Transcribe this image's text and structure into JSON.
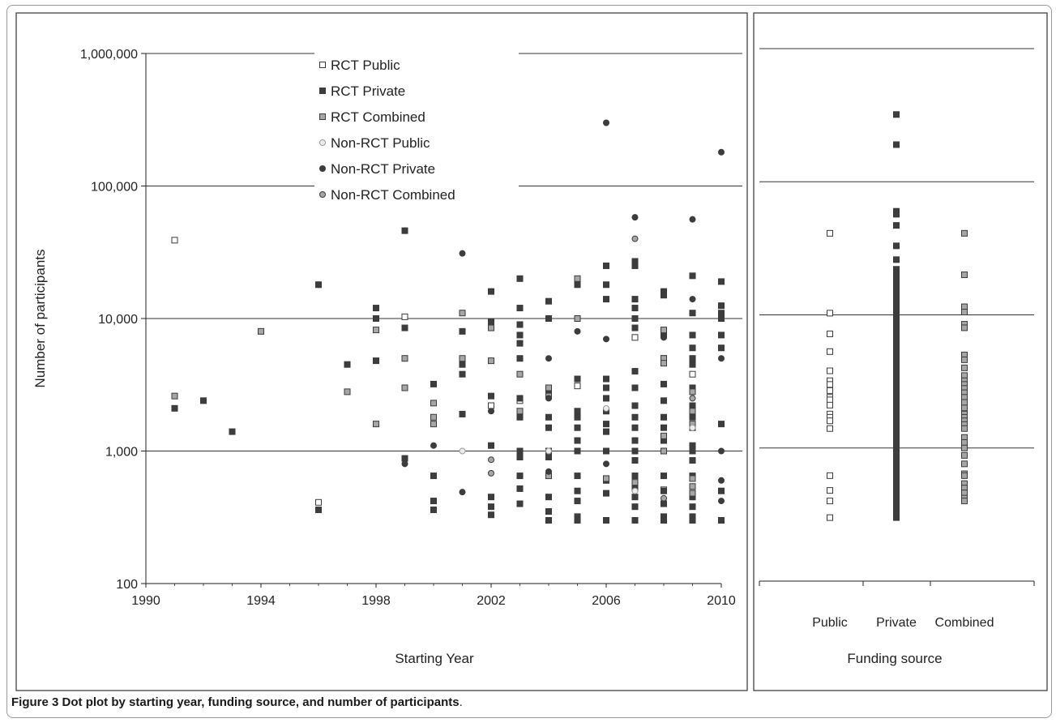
{
  "caption": {
    "label": "Figure 3",
    "text": "Dot plot by starting year, funding source, and number of participants",
    "end": "."
  },
  "colors": {
    "rct_public": "#ffffff",
    "rct_private": "#3d3d3d",
    "rct_combined": "#a6a6a6",
    "nonrct_public": "#ececec",
    "nonrct_private": "#3d3d3d",
    "nonrct_combined": "#a6a6a6",
    "gridline": "#333333",
    "panel_border": "#333333"
  },
  "chart_data": [
    {
      "type": "scatter",
      "title": "",
      "xlabel": "Starting Year",
      "ylabel": "Number of participants",
      "xlim": [
        1990,
        2010
      ],
      "ylim": [
        100,
        1000000
      ],
      "yscale": "log",
      "grid": "horizontal",
      "legend_position": "top-center",
      "x_tick_labels": [
        "1990",
        "1994",
        "1998",
        "2002",
        "2006",
        "2010"
      ],
      "x_ticks": [
        1990,
        1994,
        1998,
        2002,
        2006,
        2010
      ],
      "y_tick_labels": [
        "100",
        "1,000",
        "10,000",
        "100,000",
        "1,000,000"
      ],
      "y_ticks": [
        100,
        1000,
        10000,
        100000,
        1000000
      ],
      "series": [
        {
          "name": "RCT Public",
          "marker": "square",
          "color": "#ffffff",
          "points": [
            [
              1991,
              39000
            ],
            [
              1996,
              410
            ],
            [
              1999,
              10300
            ],
            [
              2002,
              2200
            ],
            [
              2003,
              2400
            ],
            [
              2005,
              3100
            ],
            [
              2007,
              7200
            ],
            [
              2008,
              510
            ],
            [
              2009,
              3800
            ],
            [
              2007,
              620
            ]
          ]
        },
        {
          "name": "RCT Private",
          "marker": "square",
          "color": "#3d3d3d",
          "points": [
            [
              1991,
              2100
            ],
            [
              1992,
              2400
            ],
            [
              1993,
              1400
            ],
            [
              1996,
              18000
            ],
            [
              1996,
              360
            ],
            [
              1997,
              4500
            ],
            [
              1998,
              12000
            ],
            [
              1998,
              10000
            ],
            [
              1998,
              4800
            ],
            [
              1999,
              46000
            ],
            [
              1999,
              8500
            ],
            [
              1999,
              880
            ],
            [
              2000,
              3200
            ],
            [
              2000,
              650
            ],
            [
              2000,
              420
            ],
            [
              2000,
              360
            ],
            [
              2001,
              8000
            ],
            [
              2001,
              4500
            ],
            [
              2001,
              3800
            ],
            [
              2001,
              1900
            ],
            [
              2002,
              16000
            ],
            [
              2002,
              9500
            ],
            [
              2002,
              2600
            ],
            [
              2002,
              1100
            ],
            [
              2002,
              450
            ],
            [
              2002,
              380
            ],
            [
              2002,
              330
            ],
            [
              2003,
              20000
            ],
            [
              2003,
              12000
            ],
            [
              2003,
              9000
            ],
            [
              2003,
              7500
            ],
            [
              2003,
              6500
            ],
            [
              2003,
              5000
            ],
            [
              2003,
              2500
            ],
            [
              2003,
              1800
            ],
            [
              2003,
              1000
            ],
            [
              2003,
              900
            ],
            [
              2003,
              650
            ],
            [
              2003,
              520
            ],
            [
              2003,
              400
            ],
            [
              2004,
              13500
            ],
            [
              2004,
              10000
            ],
            [
              2004,
              2800
            ],
            [
              2004,
              1800
            ],
            [
              2004,
              1500
            ],
            [
              2004,
              1000
            ],
            [
              2004,
              900
            ],
            [
              2004,
              450
            ],
            [
              2004,
              350
            ],
            [
              2004,
              300
            ],
            [
              2005,
              18000
            ],
            [
              2005,
              3500
            ],
            [
              2005,
              2000
            ],
            [
              2005,
              1800
            ],
            [
              2005,
              1500
            ],
            [
              2005,
              1200
            ],
            [
              2005,
              1000
            ],
            [
              2005,
              650
            ],
            [
              2005,
              500
            ],
            [
              2005,
              420
            ],
            [
              2005,
              320
            ],
            [
              2005,
              300
            ],
            [
              2006,
              25000
            ],
            [
              2006,
              18000
            ],
            [
              2006,
              14000
            ],
            [
              2006,
              3500
            ],
            [
              2006,
              3000
            ],
            [
              2006,
              2500
            ],
            [
              2006,
              2000
            ],
            [
              2006,
              1600
            ],
            [
              2006,
              1400
            ],
            [
              2006,
              1000
            ],
            [
              2006,
              600
            ],
            [
              2006,
              480
            ],
            [
              2006,
              300
            ],
            [
              2007,
              27000
            ],
            [
              2007,
              25000
            ],
            [
              2007,
              14000
            ],
            [
              2007,
              12000
            ],
            [
              2007,
              10000
            ],
            [
              2007,
              8500
            ],
            [
              2007,
              4000
            ],
            [
              2007,
              3000
            ],
            [
              2007,
              2200
            ],
            [
              2007,
              1800
            ],
            [
              2007,
              1500
            ],
            [
              2007,
              1200
            ],
            [
              2007,
              1000
            ],
            [
              2007,
              850
            ],
            [
              2007,
              650
            ],
            [
              2007,
              520
            ],
            [
              2007,
              450
            ],
            [
              2007,
              380
            ],
            [
              2007,
              300
            ],
            [
              2008,
              16000
            ],
            [
              2008,
              15000
            ],
            [
              2008,
              7500
            ],
            [
              2008,
              5000
            ],
            [
              2008,
              3200
            ],
            [
              2008,
              2400
            ],
            [
              2008,
              1800
            ],
            [
              2008,
              1500
            ],
            [
              2008,
              1200
            ],
            [
              2008,
              1000
            ],
            [
              2008,
              650
            ],
            [
              2008,
              500
            ],
            [
              2008,
              400
            ],
            [
              2008,
              320
            ],
            [
              2008,
              300
            ],
            [
              2009,
              21000
            ],
            [
              2009,
              11000
            ],
            [
              2009,
              7500
            ],
            [
              2009,
              6000
            ],
            [
              2009,
              5000
            ],
            [
              2009,
              4500
            ],
            [
              2009,
              3000
            ],
            [
              2009,
              2200
            ],
            [
              2009,
              1800
            ],
            [
              2009,
              1500
            ],
            [
              2009,
              1100
            ],
            [
              2009,
              1000
            ],
            [
              2009,
              850
            ],
            [
              2009,
              650
            ],
            [
              2009,
              450
            ],
            [
              2009,
              380
            ],
            [
              2009,
              320
            ],
            [
              2009,
              300
            ],
            [
              2010,
              19000
            ],
            [
              2010,
              12500
            ],
            [
              2010,
              11000
            ],
            [
              2010,
              10000
            ],
            [
              2010,
              7500
            ],
            [
              2010,
              6000
            ],
            [
              2010,
              1600
            ],
            [
              2010,
              500
            ],
            [
              2010,
              300
            ]
          ]
        },
        {
          "name": "RCT Combined",
          "marker": "square",
          "color": "#a6a6a6",
          "points": [
            [
              1991,
              2600
            ],
            [
              1994,
              8000
            ],
            [
              1997,
              2800
            ],
            [
              1998,
              8200
            ],
            [
              1998,
              1600
            ],
            [
              1999,
              5000
            ],
            [
              1999,
              3000
            ],
            [
              2000,
              2300
            ],
            [
              2000,
              1800
            ],
            [
              2000,
              1600
            ],
            [
              2001,
              11000
            ],
            [
              2001,
              5000
            ],
            [
              2002,
              8500
            ],
            [
              2002,
              4800
            ],
            [
              2003,
              3800
            ],
            [
              2003,
              2000
            ],
            [
              2004,
              3000
            ],
            [
              2004,
              2600
            ],
            [
              2004,
              650
            ],
            [
              2005,
              20000
            ],
            [
              2005,
              10000
            ],
            [
              2006,
              1000
            ],
            [
              2006,
              620
            ],
            [
              2007,
              580
            ],
            [
              2008,
              8200
            ],
            [
              2008,
              5000
            ],
            [
              2008,
              4600
            ],
            [
              2008,
              1300
            ],
            [
              2008,
              1000
            ],
            [
              2009,
              2800
            ],
            [
              2009,
              2000
            ],
            [
              2009,
              1600
            ],
            [
              2009,
              620
            ],
            [
              2009,
              540
            ],
            [
              2009,
              480
            ]
          ]
        },
        {
          "name": "Non-RCT Public",
          "marker": "circle",
          "color": "#ececec",
          "points": [
            [
              2001,
              1000
            ],
            [
              2004,
              1000
            ],
            [
              2006,
              2100
            ],
            [
              2007,
              500
            ],
            [
              2009,
              1500
            ]
          ]
        },
        {
          "name": "Non-RCT Private",
          "marker": "circle",
          "color": "#3d3d3d",
          "points": [
            [
              1996,
              18000
            ],
            [
              1999,
              46000
            ],
            [
              1999,
              800
            ],
            [
              2000,
              1100
            ],
            [
              2001,
              31000
            ],
            [
              2001,
              490
            ],
            [
              2002,
              2000
            ],
            [
              2004,
              5000
            ],
            [
              2004,
              2500
            ],
            [
              2004,
              700
            ],
            [
              2005,
              8000
            ],
            [
              2006,
              300000
            ],
            [
              2006,
              7000
            ],
            [
              2006,
              1000
            ],
            [
              2006,
              800
            ],
            [
              2007,
              58000
            ],
            [
              2008,
              7200
            ],
            [
              2009,
              56000
            ],
            [
              2009,
              14000
            ],
            [
              2010,
              180000
            ],
            [
              2010,
              5000
            ],
            [
              2010,
              1000
            ],
            [
              2010,
              600
            ],
            [
              2010,
              420
            ]
          ]
        },
        {
          "name": "Non-RCT Combined",
          "marker": "circle",
          "color": "#a6a6a6",
          "points": [
            [
              2002,
              860
            ],
            [
              2002,
              680
            ],
            [
              2007,
              40000
            ],
            [
              2008,
              440
            ],
            [
              2009,
              2500
            ]
          ]
        }
      ]
    },
    {
      "type": "scatter",
      "title": "",
      "xlabel": "Funding source",
      "ylabel": "",
      "categories": [
        "Public",
        "Private",
        "Combined"
      ],
      "ylim": [
        100,
        1000000
      ],
      "yscale": "log",
      "grid": "horizontal",
      "legend_position": "none",
      "series": [
        {
          "name": "Public",
          "marker": "square",
          "color": "#ffffff",
          "values": [
            41000,
            10300,
            7200,
            5300,
            3800,
            3200,
            3000,
            2700,
            2400,
            2300,
            2100,
            1800,
            1700,
            1600,
            1400,
            620,
            480,
            400,
            300
          ]
        },
        {
          "name": "Private",
          "marker": "square",
          "color": "#3d3d3d",
          "values": [
            320000,
            190000,
            60000,
            57000,
            47000,
            33000,
            26000,
            22000,
            20000,
            18000,
            16000,
            14000,
            12000,
            10000,
            9000,
            8000,
            7000,
            6000,
            5000,
            4500,
            4000,
            3500,
            3000,
            2700,
            2400,
            2200,
            2000,
            1800,
            1600,
            1500,
            1400,
            1300,
            1200,
            1100,
            1000,
            950,
            900,
            850,
            800,
            750,
            700,
            650,
            600,
            560,
            520,
            480,
            450,
            420,
            400,
            380,
            360,
            340,
            320,
            300
          ]
        },
        {
          "name": "Combined",
          "marker": "square",
          "color": "#a6a6a6",
          "values": [
            41000,
            20000,
            11500,
            10500,
            8500,
            8000,
            5000,
            4600,
            4000,
            3500,
            3200,
            3000,
            2800,
            2600,
            2400,
            2200,
            2000,
            1800,
            1700,
            1600,
            1500,
            1400,
            1200,
            1100,
            1000,
            880,
            760,
            640,
            620,
            540,
            500,
            460,
            420,
            400
          ]
        }
      ]
    }
  ]
}
